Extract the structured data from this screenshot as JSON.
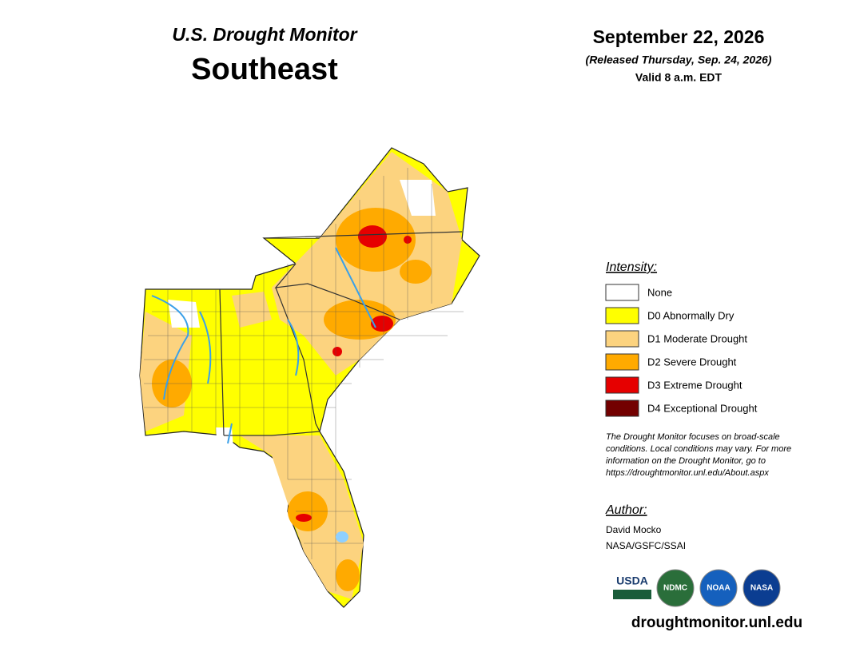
{
  "header": {
    "title": "U.S. Drought Monitor",
    "region": "Southeast",
    "date": "September 22, 2026",
    "released": "(Released Thursday, Sep. 24, 2026)",
    "valid": "Valid 8 a.m. EDT"
  },
  "legend": {
    "title": "Intensity:",
    "items": [
      {
        "label": "None",
        "color": "#ffffff"
      },
      {
        "label": "D0 Abnormally Dry",
        "color": "#ffff00"
      },
      {
        "label": "D1 Moderate Drought",
        "color": "#fcd37f"
      },
      {
        "label": "D2 Severe Drought",
        "color": "#ffaa00"
      },
      {
        "label": "D3 Extreme Drought",
        "color": "#e60000"
      },
      {
        "label": "D4 Exceptional Drought",
        "color": "#730000"
      }
    ]
  },
  "note": [
    "The Drought Monitor focuses on broad-scale",
    "conditions. Local conditions may vary. For more",
    "information on the Drought Monitor, go to",
    "https://droughtmonitor.unl.edu/About.aspx"
  ],
  "author": {
    "title": "Author:",
    "name": "David Mocko",
    "org": "NASA/GSFC/SSAI"
  },
  "logos": [
    "USDA",
    "NDMC",
    "NOAA",
    "NASA"
  ],
  "url": "droughtmonitor.unl.edu"
}
